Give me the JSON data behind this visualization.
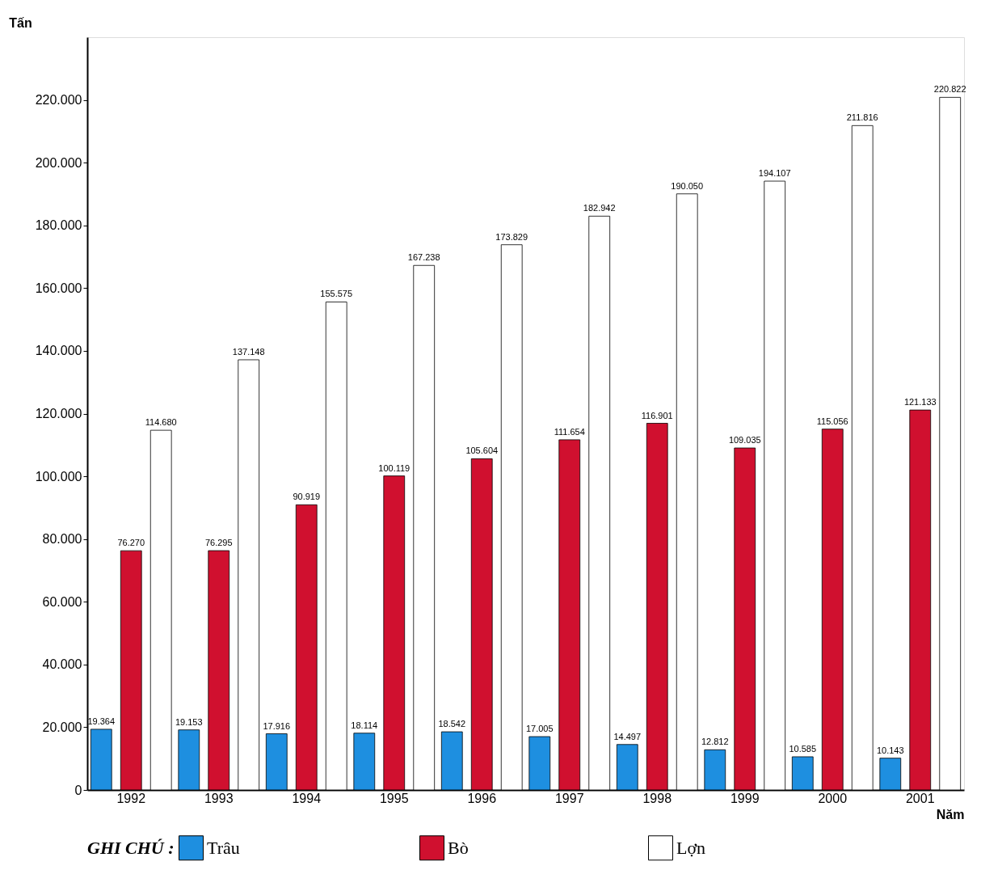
{
  "chart_data": {
    "type": "bar",
    "xlabel": "Năm",
    "ylabel": "Tấn",
    "legend_title": "GHI CHÚ :",
    "legend": "bottom",
    "grid": false,
    "categories": [
      "1992",
      "1993",
      "1994",
      "1995",
      "1996",
      "1997",
      "1998",
      "1999",
      "2000",
      "2001"
    ],
    "ylim": [
      0,
      240000
    ],
    "yticks": [
      {
        "value": 0,
        "label": "0"
      },
      {
        "value": 20000,
        "label": "20.000"
      },
      {
        "value": 40000,
        "label": "40.000"
      },
      {
        "value": 60000,
        "label": "60.000"
      },
      {
        "value": 80000,
        "label": "80.000"
      },
      {
        "value": 100000,
        "label": "100.000"
      },
      {
        "value": 120000,
        "label": "120.000"
      },
      {
        "value": 140000,
        "label": "140.000"
      },
      {
        "value": 160000,
        "label": "160.000"
      },
      {
        "value": 180000,
        "label": "180.000"
      },
      {
        "value": 200000,
        "label": "200.000"
      },
      {
        "value": 220000,
        "label": "220.000"
      }
    ],
    "series": [
      {
        "name": "Trâu",
        "color": "#1e8fe0",
        "values": [
          19364,
          19153,
          17916,
          18114,
          18542,
          17005,
          14497,
          12812,
          10585,
          10143
        ],
        "value_labels": [
          "19.364",
          "19.153",
          "17.916",
          "18.114",
          "18.542",
          "17.005",
          "14.497",
          "12.812",
          "10.585",
          "10.143"
        ]
      },
      {
        "name": "Bò",
        "color": "#d0102f",
        "values": [
          76270,
          76295,
          90919,
          100119,
          105604,
          111654,
          116901,
          109035,
          115056,
          121133
        ],
        "value_labels": [
          "76.270",
          "76.295",
          "90.919",
          "100.119",
          "105.604",
          "111.654",
          "116.901",
          "109.035",
          "115.056",
          "121.133"
        ]
      },
      {
        "name": "Lợn",
        "color": "#ffffff",
        "values": [
          114680,
          137148,
          155575,
          167238,
          173829,
          182942,
          190050,
          194107,
          211816,
          220822
        ],
        "value_labels": [
          "114.680",
          "137.148",
          "155.575",
          "167.238",
          "173.829",
          "182.942",
          "190.050",
          "194.107",
          "211.816",
          "220.822"
        ]
      }
    ]
  }
}
